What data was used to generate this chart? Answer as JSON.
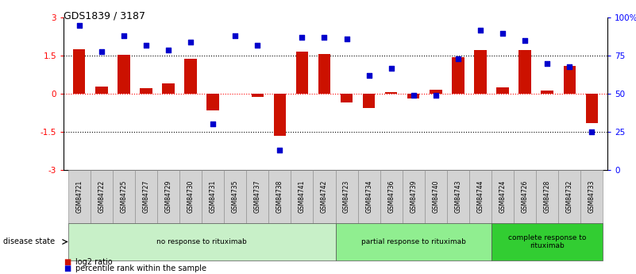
{
  "title": "GDS1839 / 3187",
  "samples": [
    "GSM84721",
    "GSM84722",
    "GSM84725",
    "GSM84727",
    "GSM84729",
    "GSM84730",
    "GSM84731",
    "GSM84735",
    "GSM84737",
    "GSM84738",
    "GSM84741",
    "GSM84742",
    "GSM84723",
    "GSM84734",
    "GSM84736",
    "GSM84739",
    "GSM84740",
    "GSM84743",
    "GSM84744",
    "GSM84724",
    "GSM84726",
    "GSM84728",
    "GSM84732",
    "GSM84733"
  ],
  "log2_ratio": [
    1.75,
    0.3,
    1.55,
    0.22,
    0.42,
    1.38,
    -0.65,
    0.0,
    -0.12,
    -1.65,
    1.68,
    1.58,
    -0.35,
    -0.55,
    0.08,
    -0.18,
    0.15,
    1.45,
    1.72,
    0.27,
    1.72,
    0.12,
    1.1,
    -1.15
  ],
  "percentile": [
    95,
    78,
    88,
    82,
    79,
    84,
    30,
    88,
    82,
    13,
    87,
    87,
    86,
    62,
    67,
    49,
    49,
    73,
    92,
    90,
    85,
    70,
    68,
    25
  ],
  "groups": [
    {
      "label": "no response to rituximab",
      "start": 0,
      "end": 12,
      "color": "#c8f0c8"
    },
    {
      "label": "partial response to rituximab",
      "start": 12,
      "end": 19,
      "color": "#90ee90"
    },
    {
      "label": "complete response to\nrituximab",
      "start": 19,
      "end": 24,
      "color": "#32cd32"
    }
  ],
  "bar_color": "#cc1100",
  "dot_color": "#0000cc",
  "yticks_left": [
    -3,
    -1.5,
    0,
    1.5,
    3
  ],
  "ytick_labels_left": [
    "-3",
    "-1.5",
    "0",
    "1.5",
    "3"
  ],
  "yticks_right": [
    0,
    25,
    50,
    75,
    100
  ],
  "ytick_labels_right": [
    "0",
    "25",
    "50",
    "75",
    "100%"
  ],
  "legend_items": [
    {
      "label": "log2 ratio",
      "color": "#cc1100"
    },
    {
      "label": "percentile rank within the sample",
      "color": "#0000cc"
    }
  ],
  "disease_state_label": "disease state"
}
